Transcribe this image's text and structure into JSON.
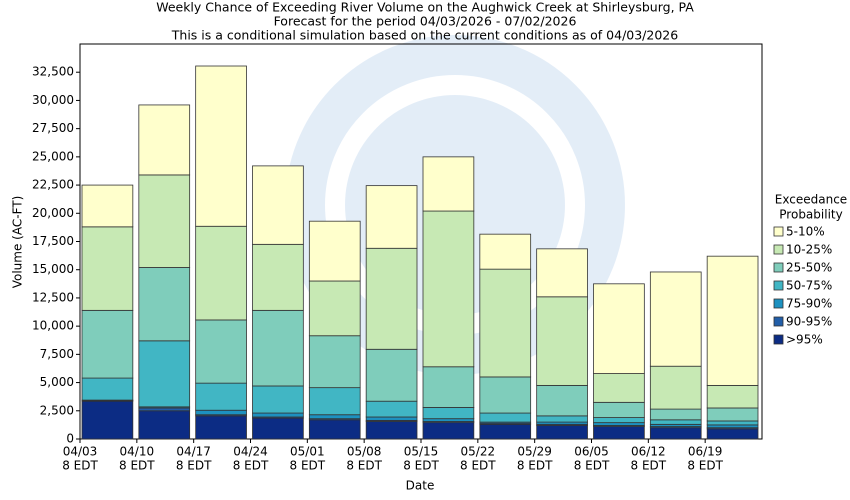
{
  "chart_data": {
    "type": "stacked_bar",
    "title": [
      "Weekly Chance of Exceeding River Volume on the Aughwick Creek at Shirleysburg, PA",
      "Forecast for the period 04/03/2026 - 07/02/2026",
      "This is a conditional simulation based on the current conditions as of 04/03/2026"
    ],
    "x_label": "Date",
    "y_label": "Volume (AC-FT)",
    "legend_title": [
      "Exceedance",
      "Probability"
    ],
    "categories": [
      [
        "04/03",
        "8 EDT"
      ],
      [
        "04/10",
        "8 EDT"
      ],
      [
        "04/17",
        "8 EDT"
      ],
      [
        "04/24",
        "8 EDT"
      ],
      [
        "05/01",
        "8 EDT"
      ],
      [
        "05/08",
        "8 EDT"
      ],
      [
        "05/15",
        "8 EDT"
      ],
      [
        "05/22",
        "8 EDT"
      ],
      [
        "05/29",
        "8 EDT"
      ],
      [
        "06/05",
        "8 EDT"
      ],
      [
        "06/12",
        "8 EDT"
      ],
      [
        "06/19",
        "8 EDT"
      ]
    ],
    "series": [
      {
        "name": "5-10%",
        "color": "#ffffcc",
        "values": [
          3700,
          6200,
          14200,
          6950,
          5300,
          5550,
          4800,
          3100,
          4250,
          7950,
          8350,
          11450
        ]
      },
      {
        "name": "10-25%",
        "color": "#c7e9b4",
        "values": [
          7400,
          8200,
          8300,
          5850,
          4850,
          8950,
          13800,
          9550,
          7850,
          2550,
          3800,
          2000
        ]
      },
      {
        "name": "25-50%",
        "color": "#7fcdbb",
        "values": [
          6000,
          6500,
          5600,
          6700,
          4600,
          4600,
          3600,
          3200,
          2700,
          1350,
          950,
          1150
        ]
      },
      {
        "name": "50-75%",
        "color": "#41b6c4",
        "values": [
          1950,
          5850,
          2400,
          2400,
          2400,
          1400,
          1000,
          800,
          550,
          450,
          400,
          350
        ]
      },
      {
        "name": "75-90%",
        "color": "#1d91c0",
        "values": [
          50,
          100,
          400,
          350,
          350,
          300,
          250,
          100,
          200,
          250,
          200,
          250
        ]
      },
      {
        "name": "90-95%",
        "color": "#225ea8",
        "values": [
          50,
          250,
          100,
          100,
          100,
          100,
          100,
          100,
          100,
          100,
          100,
          100
        ]
      },
      {
        "name": ">95%",
        "color": "#0c2c84",
        "values": [
          3350,
          2500,
          2050,
          1850,
          1700,
          1550,
          1450,
          1300,
          1200,
          1100,
          1000,
          900
        ]
      }
    ],
    "ylim": [
      0,
      35000
    ],
    "yticks": [
      0,
      {
        "value": 2500,
        "label": "2,500"
      },
      {
        "value": 5000,
        "label": "5,000"
      },
      {
        "value": 7500,
        "label": "7,500"
      },
      {
        "value": 10000,
        "label": "10,000"
      },
      {
        "value": 12500,
        "label": "12,500"
      },
      {
        "value": 15000,
        "label": "15,000"
      },
      {
        "value": 17500,
        "label": "17,500"
      },
      {
        "value": 20000,
        "label": "20,000"
      },
      {
        "value": 22500,
        "label": "22,500"
      },
      {
        "value": 25000,
        "label": "25,000"
      },
      {
        "value": 27500,
        "label": "27,500"
      },
      {
        "value": 30000,
        "label": "30,000"
      },
      {
        "value": 32500,
        "label": "32,500"
      }
    ],
    "grid": false
  }
}
